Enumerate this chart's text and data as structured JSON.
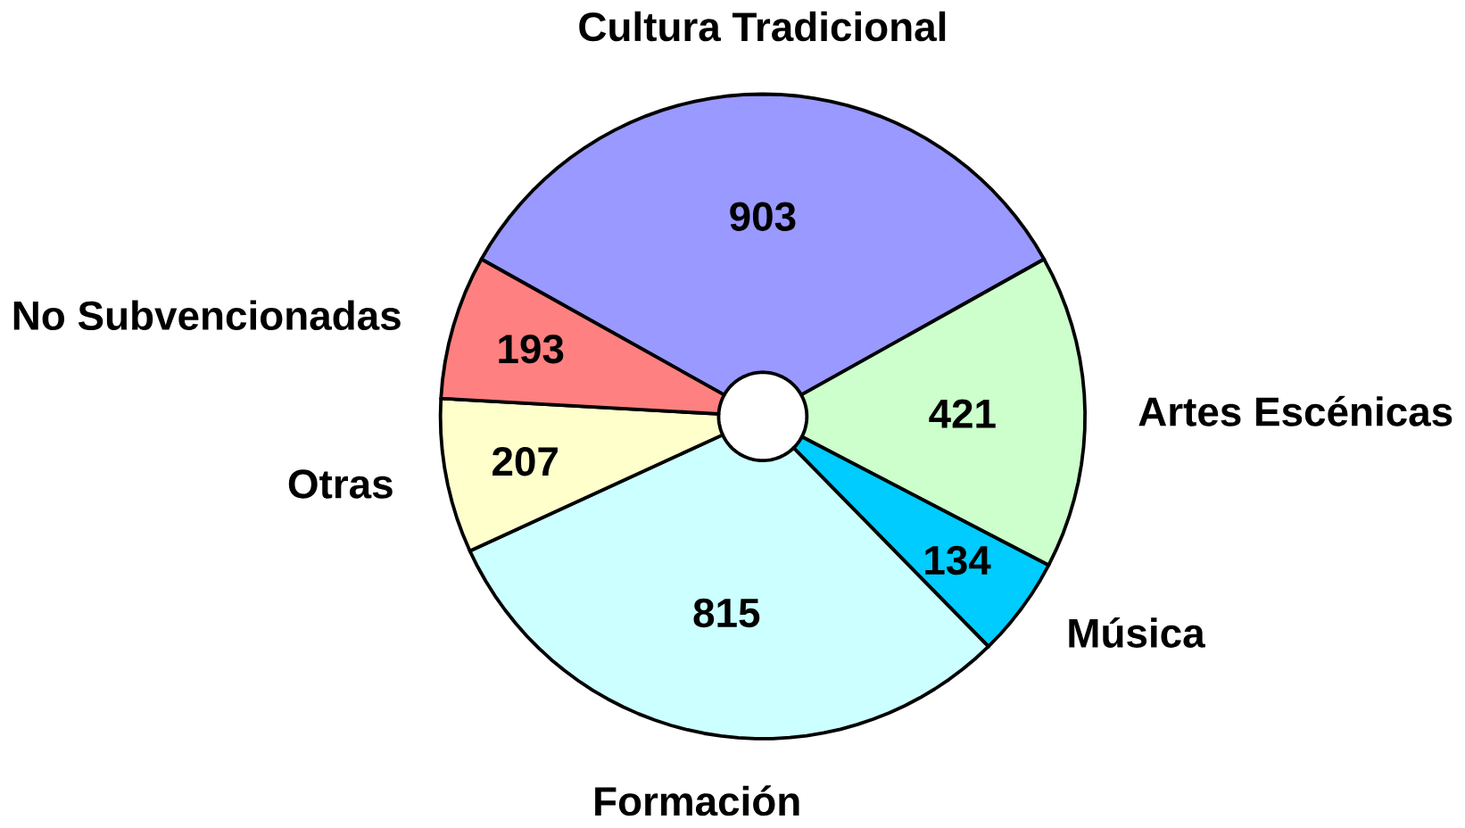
{
  "chart_data": {
    "type": "donut",
    "categories": [
      "Cultura Tradicional",
      "Artes Escénicas",
      "Música",
      "Formación",
      "Otras",
      "No Subvencionadas"
    ],
    "values": [
      903,
      421,
      134,
      815,
      207,
      193
    ],
    "colors": [
      "#9999ff",
      "#ccffcc",
      "#00ccff",
      "#ccffff",
      "#ffffcc",
      "#ff8080"
    ],
    "data_labels": true,
    "legend": false
  }
}
